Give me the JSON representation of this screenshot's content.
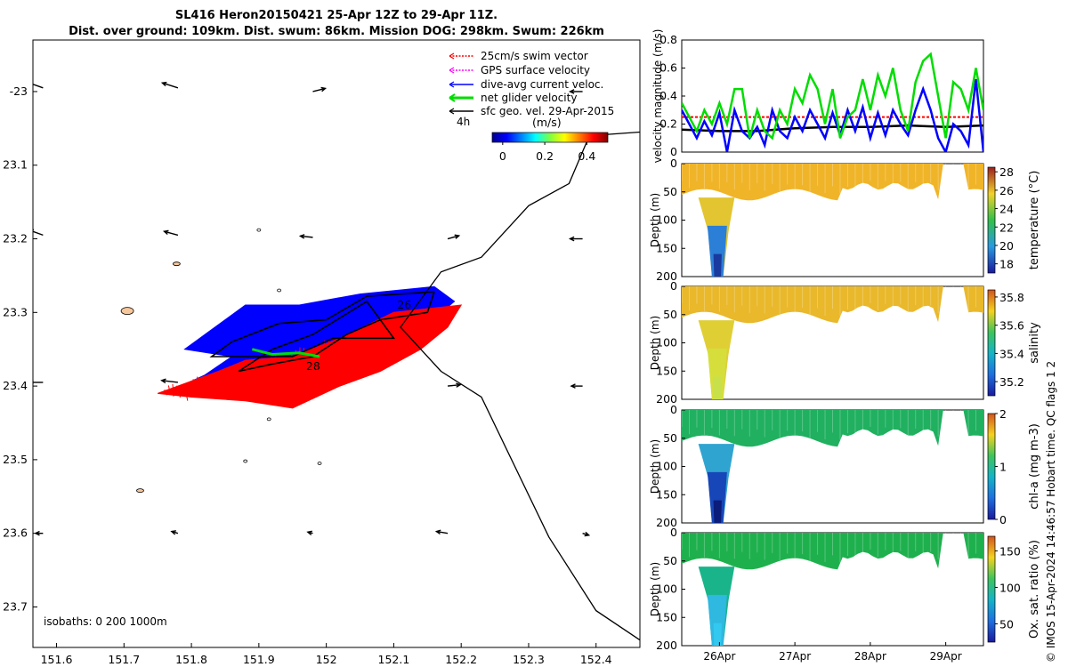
{
  "title": {
    "line1": "SL416 Heron20150421 25-Apr 12Z to 29-Apr 11Z.",
    "line2": "Dist. over ground: 109km. Dist. swum: 86km. Mission DOG: 298km. Swum: 226km"
  },
  "credit": "© IMOS 15-Apr-2024 14:46:57 Hobart time. QC flags 1  2",
  "colors": {
    "swim": "#ff0000",
    "gps": "#ff00ff",
    "current": "#0000ff",
    "net": "#00dd00",
    "geo": "#000000",
    "isobath_fill": "#f6c79a",
    "panel_orange": "#f5b21e",
    "panel_green": "#22b14c"
  },
  "chart_data": [
    {
      "type": "scatter",
      "name": "trajectory-map",
      "xlim": [
        151.565,
        152.465
      ],
      "ylim": [
        -23.755,
        -22.93
      ],
      "xticks": [
        151.6,
        151.7,
        151.8,
        151.9,
        152,
        152.1,
        152.2,
        152.3,
        152.4
      ],
      "xticklabels": [
        "151.6",
        "151.7",
        "151.8",
        "151.9",
        "152",
        "152.1",
        "152.2",
        "152.3",
        "152.4"
      ],
      "yticks": [
        -23,
        -23.1,
        -23.2,
        -23.3,
        -23.4,
        -23.5,
        -23.6,
        -23.7
      ],
      "yticklabels": [
        "-23",
        "23.1",
        "23.2",
        "23.3",
        "23.4",
        "23.5",
        "23.6",
        "23.7"
      ],
      "legend": {
        "entries": [
          "25cm/s swim vector",
          "GPS surface velocity",
          "dive-avg current veloc.",
          "net glider velocity",
          "sfc geo. vel. 29-Apr-2015"
        ],
        "time_label": "4h",
        "units_label": "(m/s)",
        "colorbar_ticks": [
          "0",
          "0.2",
          "0.4"
        ],
        "colorbar_range": [
          -0.05,
          0.5
        ]
      },
      "isobaths_label": "isobaths: 0   200  1000m",
      "day_labels": [
        {
          "text": "26",
          "lon": 152.105,
          "lat": -23.29
        },
        {
          "text": "28",
          "lon": 151.97,
          "lat": -23.373
        }
      ],
      "coastline": [
        [
          152.465,
          -23.055
        ],
        [
          152.39,
          -23.06
        ],
        [
          152.36,
          -23.125
        ],
        [
          152.3,
          -23.155
        ],
        [
          152.23,
          -23.225
        ],
        [
          152.17,
          -23.245
        ],
        [
          152.11,
          -23.32
        ],
        [
          152.17,
          -23.38
        ],
        [
          152.23,
          -23.415
        ],
        [
          152.33,
          -23.605
        ],
        [
          152.4,
          -23.705
        ],
        [
          152.465,
          -23.745
        ]
      ],
      "glider_track": [
        [
          152.16,
          -23.272
        ],
        [
          152.06,
          -23.278
        ],
        [
          152.0,
          -23.31
        ],
        [
          151.93,
          -23.315
        ],
        [
          151.86,
          -23.34
        ],
        [
          151.83,
          -23.36
        ],
        [
          151.95,
          -23.36
        ],
        [
          152.01,
          -23.335
        ],
        [
          152.1,
          -23.335
        ],
        [
          152.06,
          -23.285
        ],
        [
          151.98,
          -23.33
        ],
        [
          151.92,
          -23.35
        ],
        [
          151.87,
          -23.38
        ],
        [
          151.92,
          -23.37
        ],
        [
          151.98,
          -23.36
        ],
        [
          152.03,
          -23.33
        ],
        [
          152.08,
          -23.31
        ],
        [
          152.15,
          -23.3
        ],
        [
          152.16,
          -23.272
        ]
      ],
      "current_fan": [
        [
          152.16,
          -23.265
        ],
        [
          152.05,
          -23.275
        ],
        [
          151.96,
          -23.29
        ],
        [
          151.88,
          -23.29
        ],
        [
          151.82,
          -23.33
        ],
        [
          151.79,
          -23.35
        ],
        [
          151.86,
          -23.36
        ],
        [
          151.82,
          -23.385
        ],
        [
          151.76,
          -23.41
        ],
        [
          151.86,
          -23.395
        ],
        [
          151.96,
          -23.375
        ],
        [
          152.05,
          -23.36
        ],
        [
          152.13,
          -23.325
        ],
        [
          152.17,
          -23.3
        ],
        [
          152.19,
          -23.285
        ]
      ],
      "swim_fan": [
        [
          152.2,
          -23.29
        ],
        [
          152.1,
          -23.3
        ],
        [
          152.02,
          -23.335
        ],
        [
          151.95,
          -23.36
        ],
        [
          151.88,
          -23.365
        ],
        [
          151.84,
          -23.38
        ],
        [
          151.75,
          -23.41
        ],
        [
          151.8,
          -23.415
        ],
        [
          151.88,
          -23.42
        ],
        [
          151.95,
          -23.43
        ],
        [
          152.02,
          -23.4
        ],
        [
          152.08,
          -23.38
        ],
        [
          152.14,
          -23.35
        ],
        [
          152.18,
          -23.32
        ]
      ],
      "net_velocity_track": [
        [
          151.89,
          -23.35
        ],
        [
          151.92,
          -23.357
        ],
        [
          151.96,
          -23.355
        ],
        [
          151.99,
          -23.36
        ]
      ],
      "isobath_patches": [
        [
          151.705,
          -23.298
        ],
        [
          151.778,
          -23.234
        ],
        [
          151.724,
          -23.542
        ],
        [
          151.915,
          -23.445
        ],
        [
          151.9,
          -23.188
        ],
        [
          151.93,
          -23.27
        ],
        [
          151.99,
          -23.505
        ],
        [
          151.88,
          -23.502
        ]
      ],
      "geo_vectors": [
        {
          "lon": 151.58,
          "lat": -22.995,
          "u": -0.28,
          "v": 0.1
        },
        {
          "lon": 151.78,
          "lat": -22.995,
          "u": -0.25,
          "v": 0.08
        },
        {
          "lon": 151.98,
          "lat": -23.0,
          "u": 0.2,
          "v": 0.05
        },
        {
          "lon": 152.38,
          "lat": -23.0,
          "u": -0.2,
          "v": 0.0
        },
        {
          "lon": 151.58,
          "lat": -23.195,
          "u": -0.22,
          "v": 0.08
        },
        {
          "lon": 151.78,
          "lat": -23.195,
          "u": -0.22,
          "v": 0.06
        },
        {
          "lon": 151.98,
          "lat": -23.198,
          "u": -0.2,
          "v": 0.02
        },
        {
          "lon": 152.18,
          "lat": -23.2,
          "u": 0.18,
          "v": 0.05
        },
        {
          "lon": 152.38,
          "lat": -23.2,
          "u": -0.2,
          "v": 0.0
        },
        {
          "lon": 151.58,
          "lat": -23.395,
          "u": -0.22,
          "v": 0.0
        },
        {
          "lon": 151.78,
          "lat": -23.395,
          "u": -0.26,
          "v": 0.03
        },
        {
          "lon": 151.98,
          "lat": -23.395,
          "u": -0.26,
          "v": 0.07
        },
        {
          "lon": 152.18,
          "lat": -23.4,
          "u": 0.2,
          "v": 0.02
        },
        {
          "lon": 152.38,
          "lat": -23.4,
          "u": -0.18,
          "v": 0.0
        },
        {
          "lon": 151.58,
          "lat": -23.6,
          "u": -0.12,
          "v": 0.0
        },
        {
          "lon": 151.78,
          "lat": -23.6,
          "u": -0.1,
          "v": 0.03
        },
        {
          "lon": 151.98,
          "lat": -23.6,
          "u": -0.08,
          "v": 0.02
        },
        {
          "lon": 152.18,
          "lat": -23.6,
          "u": -0.18,
          "v": 0.03
        },
        {
          "lon": 152.38,
          "lat": -23.6,
          "u": 0.1,
          "v": -0.03
        }
      ]
    },
    {
      "type": "line",
      "name": "velocity-magnitude",
      "ylabel": "velocity magnitude (m/s)",
      "ylim": [
        0,
        0.8
      ],
      "yticks": [
        0,
        0.2,
        0.4,
        0.6,
        0.8
      ],
      "yticklabels": [
        "0",
        "0.2",
        "0.4",
        "0.6",
        "0.8"
      ],
      "xlim": [
        25.5,
        29.5
      ],
      "series": [
        {
          "name": "swim",
          "color": "#ff0000",
          "x": [
            25.5,
            29.5
          ],
          "y": [
            0.25,
            0.25
          ]
        },
        {
          "name": "geo",
          "color": "#000000",
          "x": [
            25.5,
            26.0,
            26.5,
            27.0,
            27.5,
            28.0,
            28.5,
            29.0,
            29.5
          ],
          "y": [
            0.16,
            0.15,
            0.15,
            0.17,
            0.18,
            0.18,
            0.19,
            0.18,
            0.19
          ]
        },
        {
          "name": "current",
          "color": "#0000ff",
          "x": [
            25.5,
            25.6,
            25.7,
            25.8,
            25.9,
            26.0,
            26.1,
            26.2,
            26.3,
            26.4,
            26.5,
            26.6,
            26.7,
            26.8,
            26.9,
            27.0,
            27.1,
            27.2,
            27.3,
            27.4,
            27.5,
            27.6,
            27.7,
            27.8,
            27.9,
            28.0,
            28.1,
            28.2,
            28.3,
            28.4,
            28.5,
            28.6,
            28.7,
            28.8,
            28.9,
            29.0,
            29.1,
            29.2,
            29.3,
            29.4,
            29.5
          ],
          "y": [
            0.3,
            0.2,
            0.1,
            0.22,
            0.12,
            0.28,
            0.0,
            0.3,
            0.15,
            0.1,
            0.18,
            0.05,
            0.3,
            0.15,
            0.1,
            0.25,
            0.15,
            0.3,
            0.2,
            0.1,
            0.28,
            0.12,
            0.3,
            0.15,
            0.32,
            0.1,
            0.28,
            0.12,
            0.3,
            0.2,
            0.12,
            0.3,
            0.45,
            0.3,
            0.1,
            0.0,
            0.2,
            0.15,
            0.05,
            0.52,
            0.0
          ]
        },
        {
          "name": "net",
          "color": "#00dd00",
          "x": [
            25.5,
            25.6,
            25.7,
            25.8,
            25.9,
            26.0,
            26.1,
            26.2,
            26.3,
            26.4,
            26.5,
            26.6,
            26.7,
            26.8,
            26.9,
            27.0,
            27.1,
            27.2,
            27.3,
            27.4,
            27.5,
            27.6,
            27.7,
            27.8,
            27.9,
            28.0,
            28.1,
            28.2,
            28.3,
            28.4,
            28.5,
            28.6,
            28.7,
            28.8,
            28.9,
            29.0,
            29.1,
            29.2,
            29.3,
            29.4,
            29.5
          ],
          "y": [
            0.35,
            0.25,
            0.15,
            0.3,
            0.2,
            0.35,
            0.2,
            0.45,
            0.45,
            0.1,
            0.3,
            0.15,
            0.1,
            0.3,
            0.2,
            0.45,
            0.35,
            0.55,
            0.45,
            0.2,
            0.45,
            0.1,
            0.25,
            0.3,
            0.52,
            0.3,
            0.55,
            0.4,
            0.6,
            0.3,
            0.15,
            0.5,
            0.65,
            0.7,
            0.4,
            0.1,
            0.5,
            0.45,
            0.3,
            0.6,
            0.3
          ]
        }
      ]
    },
    {
      "type": "heatmap",
      "name": "temperature",
      "colorbar_label": "temperature (°C)",
      "colorbar_ticks": [
        "28",
        "26",
        "24",
        "22",
        "20",
        "18"
      ],
      "clim": [
        17,
        28.5
      ],
      "ylabel": "Depth (m)",
      "ylim": [
        0,
        200
      ],
      "yticks": [
        0,
        50,
        100,
        150,
        200
      ],
      "yticklabels": [
        "0",
        "50",
        "100",
        "150",
        "200"
      ],
      "surface_value": 25.8,
      "deep_value": 19
    },
    {
      "type": "heatmap",
      "name": "salinity",
      "colorbar_label": "salinity",
      "colorbar_ticks": [
        "35.8",
        "35.6",
        "35.4",
        "35.2"
      ],
      "clim": [
        35.1,
        35.85
      ],
      "ylabel": "Depth (m)",
      "ylim": [
        0,
        200
      ],
      "yticks": [
        0,
        50,
        100,
        150,
        200
      ],
      "yticklabels": [
        "0",
        "50",
        "100",
        "150",
        "200"
      ],
      "surface_value": 35.66,
      "deep_value": 35.52
    },
    {
      "type": "heatmap",
      "name": "chlorophyll",
      "colorbar_label": "chl-a (mg m-3)",
      "colorbar_ticks": [
        "2",
        "1",
        "0"
      ],
      "clim": [
        0,
        2
      ],
      "ylabel": "Depth (m)",
      "ylim": [
        0,
        200
      ],
      "yticks": [
        0,
        50,
        100,
        150,
        200
      ],
      "yticklabels": [
        "0",
        "50",
        "100",
        "150",
        "200"
      ],
      "surface_value": 0.45,
      "deep_value": 0.15
    },
    {
      "type": "heatmap",
      "name": "oxygen",
      "colorbar_label": "Ox. sat. ratio (%)",
      "colorbar_ticks": [
        "150",
        "100",
        "50"
      ],
      "clim": [
        25,
        170
      ],
      "ylabel": "Depth (m)",
      "ylim": [
        0,
        200
      ],
      "yticks": [
        0,
        50,
        100,
        150,
        200
      ],
      "yticklabels": [
        "0",
        "50",
        "100",
        "150",
        "200"
      ],
      "surface_value": 95,
      "deep_value": 70,
      "xticks": [
        26,
        27,
        28,
        29
      ],
      "xticklabels": [
        "26Apr",
        "27Apr",
        "28Apr",
        "29Apr"
      ]
    }
  ]
}
